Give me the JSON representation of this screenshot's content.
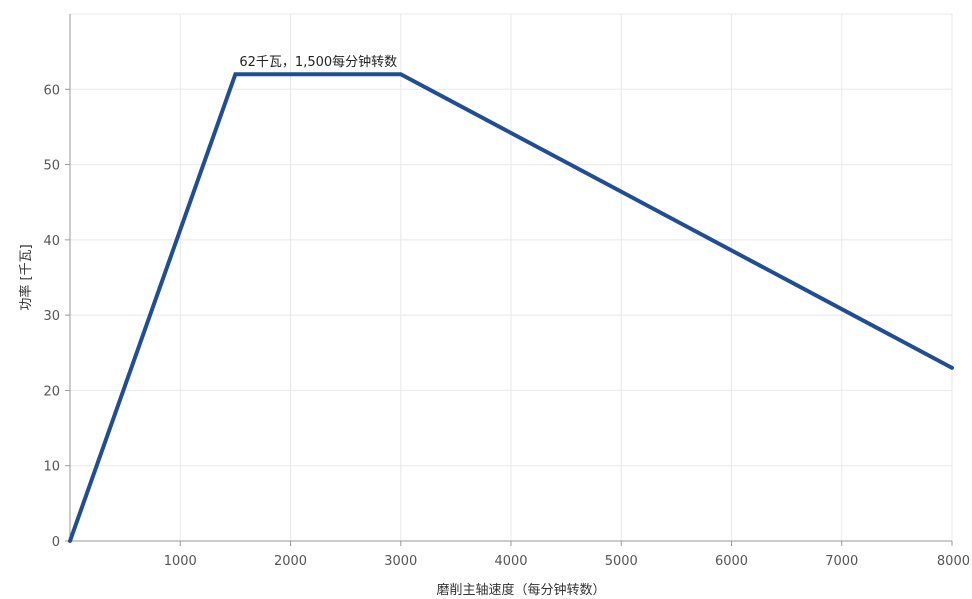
{
  "chart_data": {
    "type": "line",
    "title": "",
    "xlabel": "磨削主轴速度（每分钟转数）",
    "ylabel": "功率 [千瓦]",
    "xlim": [
      0,
      8000
    ],
    "ylim": [
      0,
      70
    ],
    "x_ticks": [
      1000,
      2000,
      3000,
      4000,
      5000,
      6000,
      7000,
      8000
    ],
    "x_tick_labels": [
      "1000",
      "2000",
      "3000",
      "4000",
      "5000",
      "6000",
      "7000",
      "8000"
    ],
    "y_ticks": [
      0,
      10,
      20,
      30,
      40,
      50,
      60
    ],
    "y_tick_labels": [
      "0",
      "10",
      "20",
      "30",
      "40",
      "50",
      "60"
    ],
    "grid": true,
    "series": [
      {
        "x": [
          0,
          1500,
          3000,
          8000
        ],
        "y": [
          0,
          62,
          62,
          23
        ]
      }
    ],
    "annotations": [
      {
        "text": "62千瓦，1,500每分钟转数",
        "x": 1500,
        "y": 62
      }
    ],
    "colors": {
      "line": "#1f4e96",
      "grid": "#e8e8e8",
      "axis": "#999999"
    }
  }
}
